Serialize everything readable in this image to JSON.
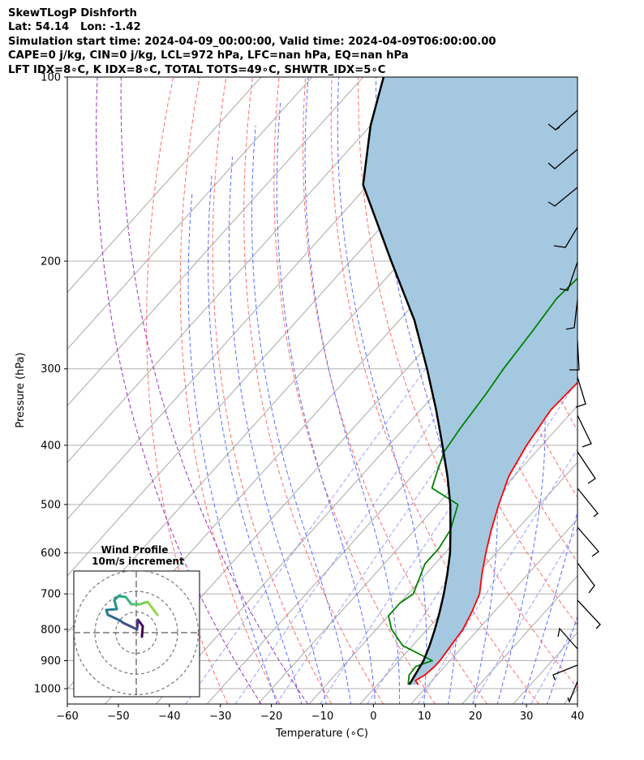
{
  "header": {
    "line1": "SkewTLogP Dishforth",
    "line2": "Lat: 54.14   Lon: -1.42",
    "line3": "Simulation start time: 2024-04-09_00:00:00, Valid time: 2024-04-09T06:00:00.00",
    "line4": "CAPE=0 j/kg, CIN=0 j/kg, LCL=972 hPa, LFC=nan hPa, EQ=nan hPa",
    "line5": "LFT IDX=8∘C, K IDX=8∘C, TOTAL TOTS=49∘C, SHWTR_IDX=5∘C"
  },
  "chart_data": {
    "type": "line",
    "xlabel": "Temperature (∘C)",
    "ylabel": "Pressure (hPa)",
    "xlim": [
      -60,
      40
    ],
    "ylim": [
      1050,
      100
    ],
    "y_scale": "log",
    "skew": "skew-T",
    "grid": true,
    "x_ticks": [
      "−60",
      "−50",
      "−40",
      "−30",
      "−20",
      "−10",
      "0",
      "10",
      "20",
      "30",
      "40"
    ],
    "y_ticks": [
      "100",
      "200",
      "300",
      "400",
      "500",
      "600",
      "700",
      "800",
      "900",
      "1000"
    ],
    "colors": {
      "temperature": "#ff0000",
      "dewpoint": "#008000",
      "parcel": "#000000",
      "cin_fill": "#a5c8e1",
      "dry_adiabats": "#ff6b6b",
      "moist_adiabats": "#5a6cff",
      "mixing_ratio": "#7b7bff",
      "isotherms": "#b0b0b0"
    },
    "series": [
      {
        "name": "temperature",
        "points": [
          [
            8,
            985
          ],
          [
            6.7,
            970
          ],
          [
            7.6,
            950
          ],
          [
            8,
            920
          ],
          [
            8,
            900
          ],
          [
            7.5,
            850
          ],
          [
            7,
            800
          ],
          [
            5.7,
            750
          ],
          [
            4,
            700
          ],
          [
            1,
            650
          ],
          [
            -2,
            600
          ],
          [
            -5,
            550
          ],
          [
            -8,
            500
          ],
          [
            -11,
            450
          ],
          [
            -13,
            400
          ],
          [
            -14.5,
            350
          ],
          [
            -14,
            310
          ],
          [
            -13,
            280
          ],
          [
            -10.5,
            250
          ],
          [
            -6,
            220
          ],
          [
            -3,
            200
          ],
          [
            -1,
            180
          ],
          [
            1,
            160
          ],
          [
            4,
            140
          ],
          [
            8,
            120
          ],
          [
            12,
            110
          ],
          [
            14,
            100
          ]
        ]
      },
      {
        "name": "dewpoint",
        "points": [
          [
            6,
            985
          ],
          [
            4.5,
            950
          ],
          [
            4.3,
            920
          ],
          [
            6.5,
            900
          ],
          [
            -2,
            850
          ],
          [
            -7,
            800
          ],
          [
            -10,
            760
          ],
          [
            -10,
            725
          ],
          [
            -9,
            700
          ],
          [
            -12,
            625
          ],
          [
            -12,
            590
          ],
          [
            -13,
            550
          ],
          [
            -16,
            500
          ],
          [
            -24,
            470
          ],
          [
            -26,
            440
          ],
          [
            -28,
            410
          ],
          [
            -29,
            375
          ],
          [
            -30,
            330
          ],
          [
            -31,
            300
          ],
          [
            -32,
            260
          ],
          [
            -33,
            230
          ],
          [
            -32,
            200
          ],
          [
            -31,
            170
          ],
          [
            -26,
            150
          ],
          [
            -16,
            125
          ],
          [
            -7,
            110
          ],
          [
            -1,
            100
          ]
        ]
      },
      {
        "name": "parcel",
        "points": [
          [
            6.2,
            985
          ],
          [
            6,
            970
          ],
          [
            4.8,
            900
          ],
          [
            3.3,
            850
          ],
          [
            1.5,
            800
          ],
          [
            -0.6,
            750
          ],
          [
            -3,
            700
          ],
          [
            -5.8,
            650
          ],
          [
            -9,
            600
          ],
          [
            -13,
            550
          ],
          [
            -17.5,
            500
          ],
          [
            -23,
            450
          ],
          [
            -29.5,
            400
          ],
          [
            -37,
            350
          ],
          [
            -46,
            300
          ],
          [
            -57,
            250
          ],
          [
            -72,
            200
          ],
          [
            -91,
            150
          ],
          [
            -100,
            120
          ],
          [
            -106,
            100
          ]
        ]
      }
    ],
    "inset": {
      "title": "Wind Profile",
      "subtitle": "10m/s increment",
      "rings": [
        10,
        20,
        30
      ]
    }
  }
}
